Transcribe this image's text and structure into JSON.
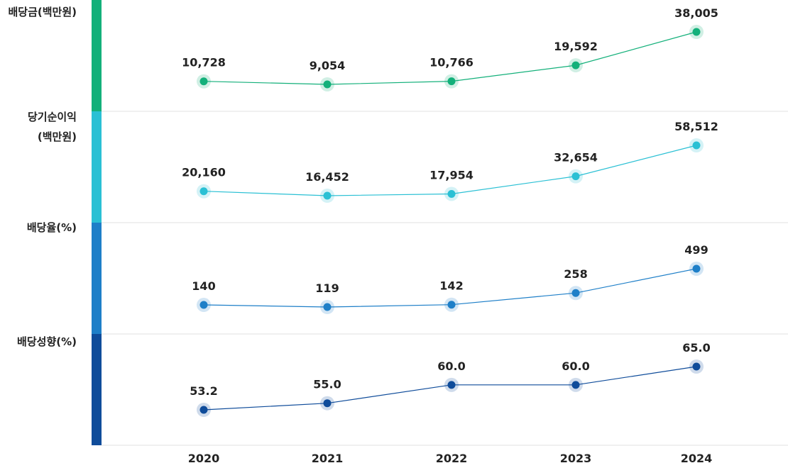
{
  "chart_data": {
    "type": "line",
    "x": [
      "2020",
      "2021",
      "2022",
      "2023",
      "2024"
    ],
    "series": [
      {
        "name": "배당금(백만원)",
        "label_lines": [
          "배당금(백만원)"
        ],
        "color": "#13b07a",
        "values": [
          10728,
          9054,
          10766,
          19592,
          38005
        ],
        "labels": [
          "10,728",
          "9,054",
          "10,766",
          "19,592",
          "38,005"
        ]
      },
      {
        "name": "당기순이익(백만원)",
        "label_lines": [
          "당기순이익",
          "(백만원)"
        ],
        "color": "#2ac0d4",
        "values": [
          20160,
          16452,
          17954,
          32654,
          58512
        ],
        "labels": [
          "20,160",
          "16,452",
          "17,954",
          "32,654",
          "58,512"
        ]
      },
      {
        "name": "배당율(%)",
        "label_lines": [
          "배당율(%)"
        ],
        "color": "#1e7fc8",
        "values": [
          140,
          119,
          142,
          258,
          499
        ],
        "labels": [
          "140",
          "119",
          "142",
          "258",
          "499"
        ]
      },
      {
        "name": "배당성향(%)",
        "label_lines": [
          "배당성향(%)"
        ],
        "color": "#0f4c9a",
        "values": [
          53.2,
          55.0,
          60.0,
          60.0,
          65.0
        ],
        "labels": [
          "53.2",
          "55.0",
          "60.0",
          "60.0",
          "65.0"
        ]
      }
    ]
  }
}
